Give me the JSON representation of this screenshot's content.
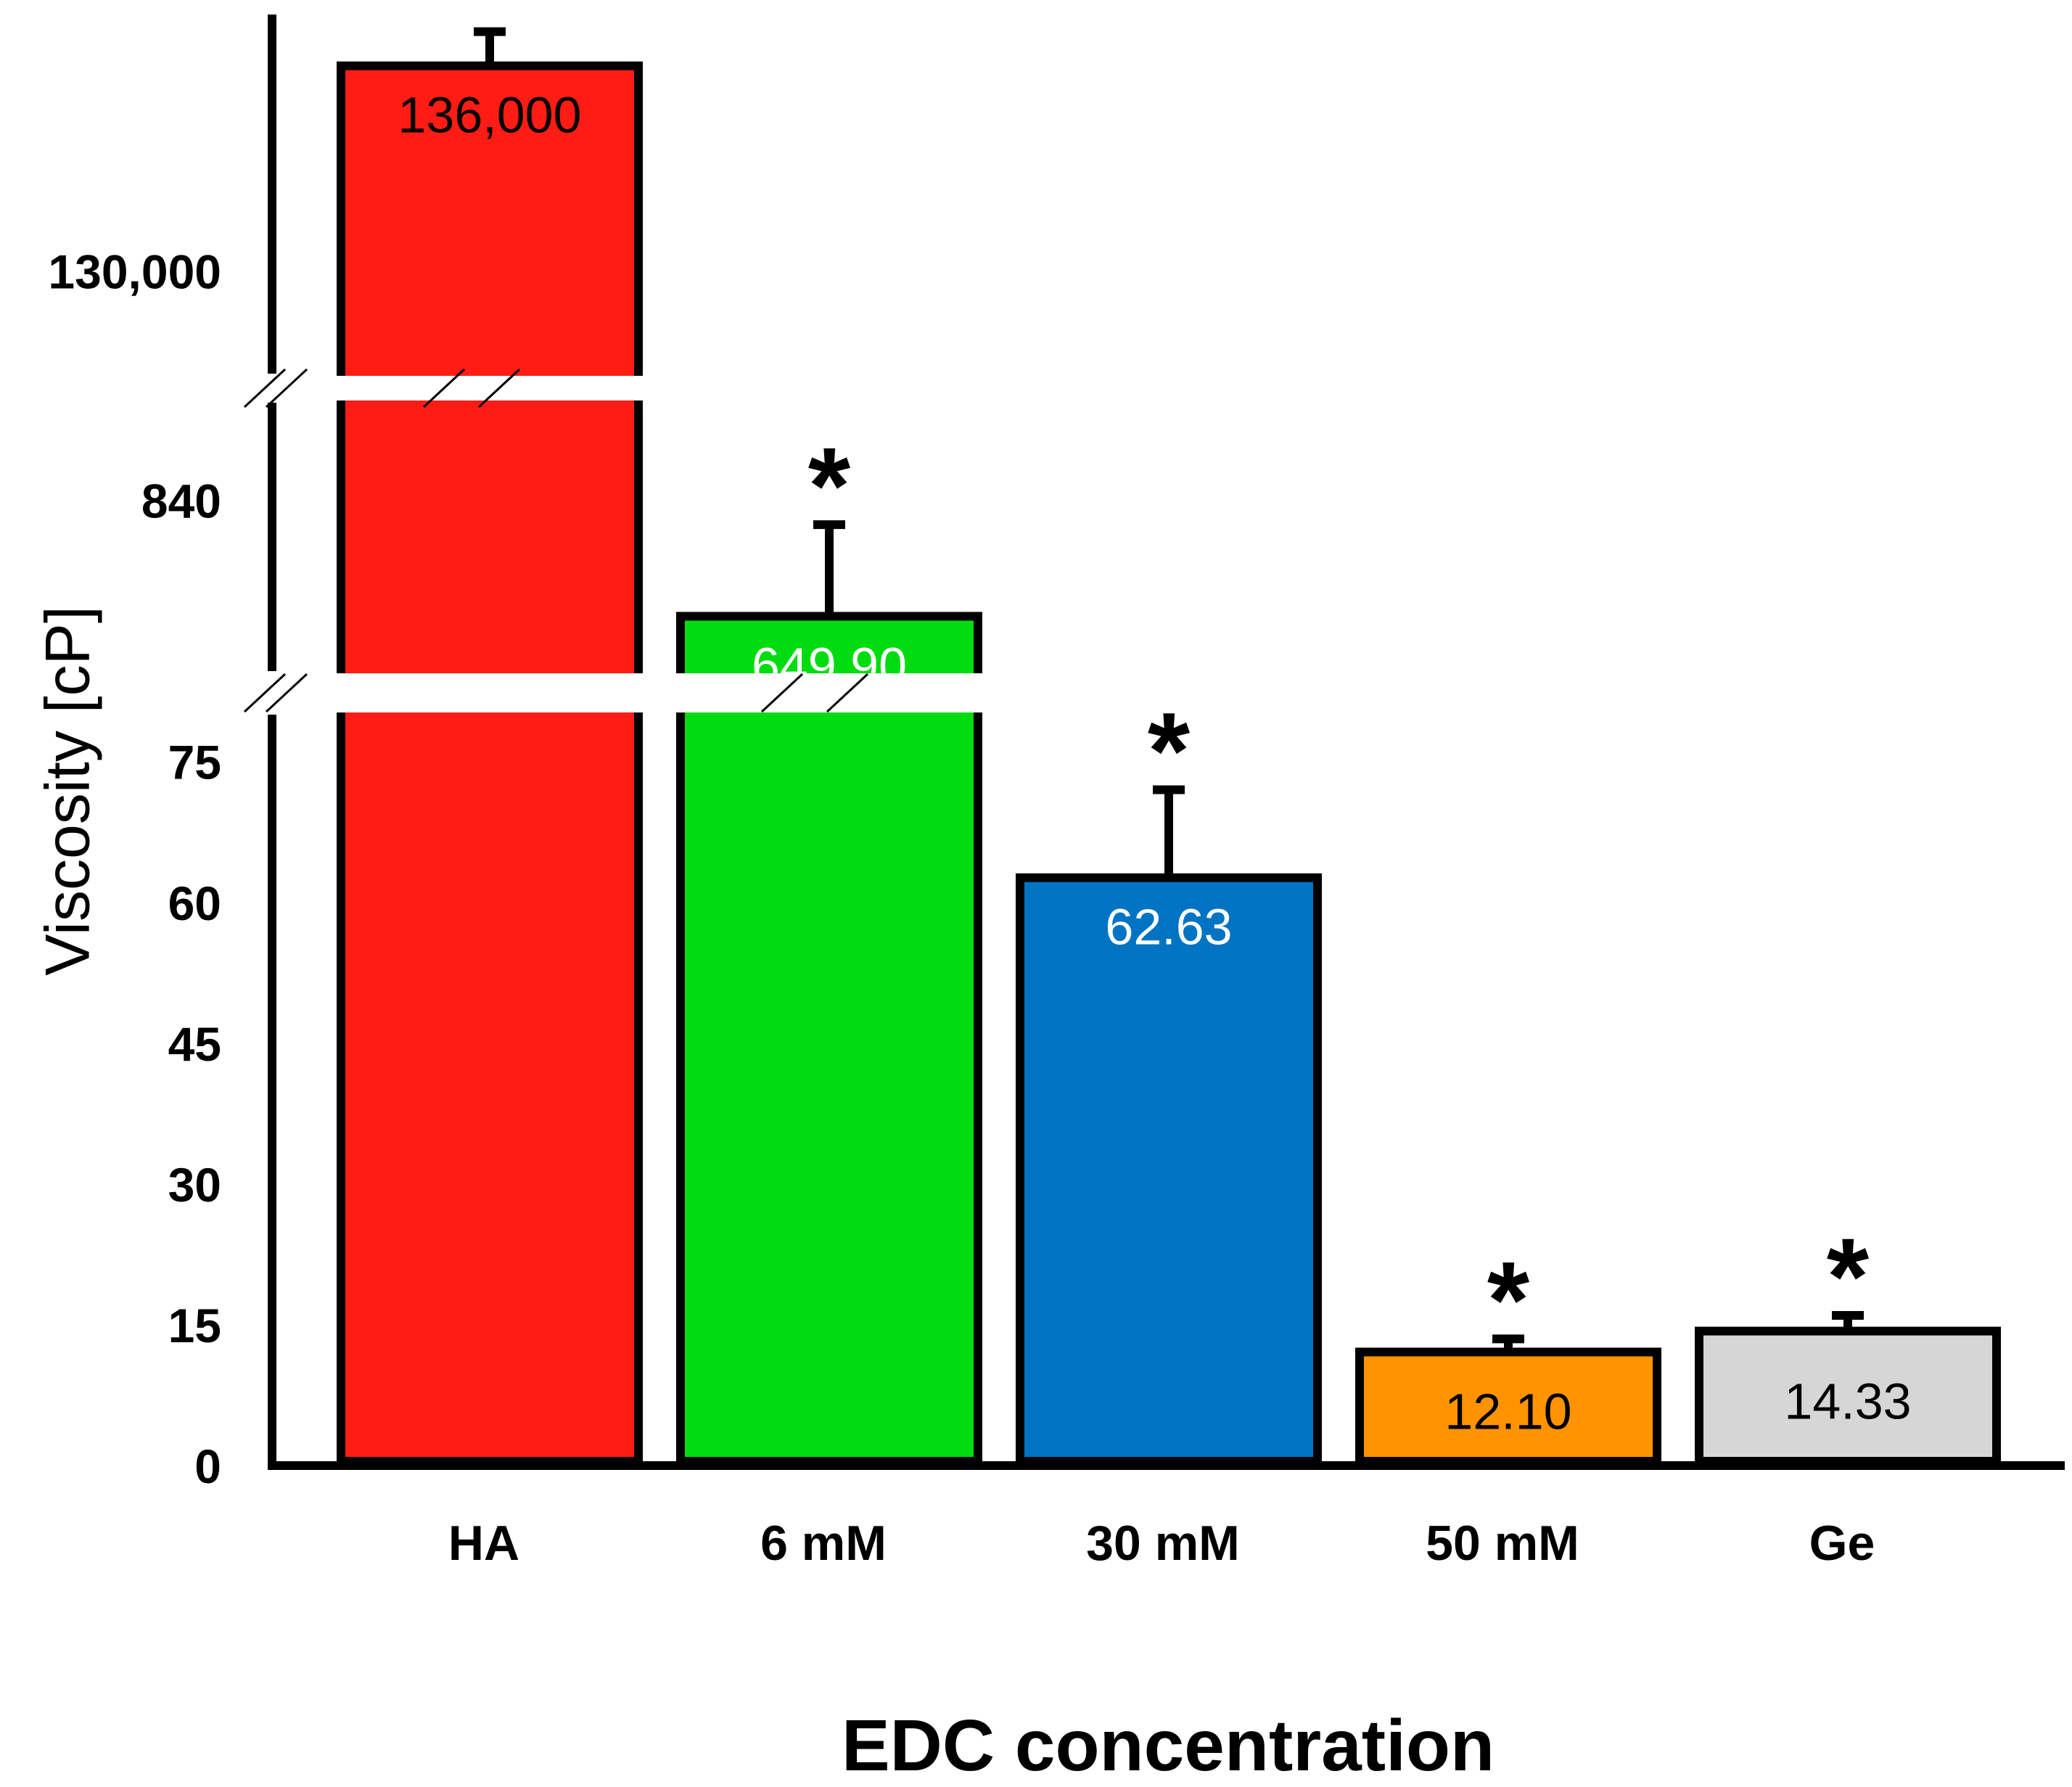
{
  "chart_data": {
    "type": "bar",
    "title": "",
    "xlabel": "EDC concentration",
    "ylabel": "Viscosity [cP]",
    "broken_axis": true,
    "y_segments": [
      {
        "range": [
          0,
          80
        ],
        "ticks": [
          "0",
          "15",
          "30",
          "45",
          "60",
          "75"
        ],
        "tick_values": [
          0,
          15,
          30,
          45,
          60,
          75
        ]
      },
      {
        "range": [
          560,
          1000
        ],
        "ticks": [
          "840"
        ],
        "tick_values": [
          840
        ]
      },
      {
        "range": [
          127000,
          137500
        ],
        "ticks": [
          "130,000"
        ],
        "tick_values": [
          130000
        ]
      }
    ],
    "categories": [
      "HA",
      "6 mM",
      "30 mM",
      "50 mM",
      "Ge"
    ],
    "values": [
      136000,
      649.9,
      62.63,
      12.1,
      14.33
    ],
    "value_labels": [
      "136,000",
      "649.90",
      "62.63",
      "12.10",
      "14.33"
    ],
    "error_upper": [
      137000,
      800,
      72,
      13.5,
      16
    ],
    "significance": [
      "",
      "*",
      "*",
      "*",
      "*"
    ],
    "colors": [
      "#ff1c14",
      "#00dc10",
      "#0074c2",
      "#ff9400",
      "#d6d6d6"
    ],
    "label_colors": [
      "#000000",
      "#ffffff",
      "#ffffff",
      "#000000",
      "#000000"
    ],
    "grid": false,
    "legend": "none"
  }
}
